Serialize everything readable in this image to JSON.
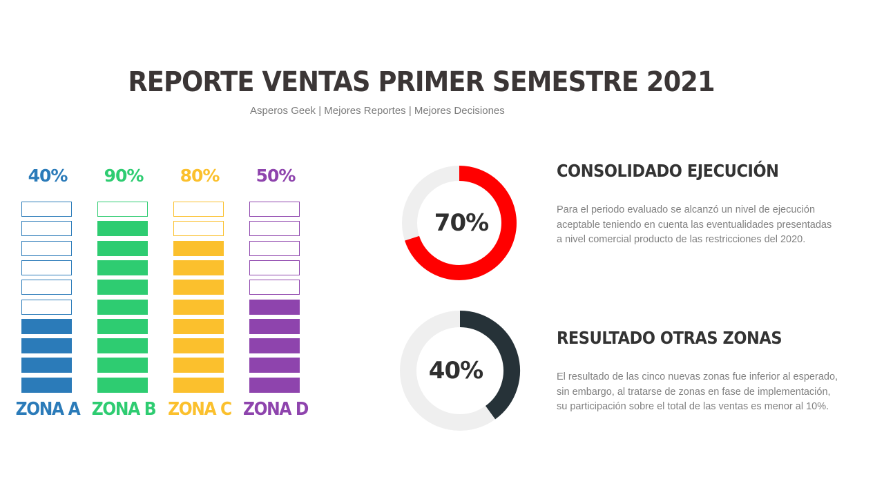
{
  "header": {
    "title": "REPORTE VENTAS PRIMER SEMESTRE 2021",
    "subtitle": "Asperos Geek | Mejores Reportes | Mejores Decisiones"
  },
  "chart_data": [
    {
      "type": "bar",
      "categories": [
        "ZONA A",
        "ZONA B",
        "ZONA C",
        "ZONA D"
      ],
      "values": [
        40,
        90,
        80,
        50
      ],
      "value_labels": [
        "40%",
        "90%",
        "80%",
        "50%"
      ],
      "segments": 10,
      "colors": [
        "#2b7bb9",
        "#2ecc71",
        "#fbc02d",
        "#8e44ad"
      ]
    },
    {
      "type": "pie",
      "label": "70%",
      "value": 70,
      "color": "#ff0000",
      "track_color": "#efefef"
    },
    {
      "type": "pie",
      "label": "40%",
      "value": 40,
      "color": "#263238",
      "track_color": "#efefef"
    }
  ],
  "sections": [
    {
      "heading": "CONSOLIDADO EJECUCIÓN",
      "lines": [
        "Para el periodo evaluado se alcanzó un nivel de ejecución",
        "aceptable teniendo en cuenta las eventualidades presentadas",
        "a nivel comercial producto de las restricciones del 2020."
      ]
    },
    {
      "heading": "RESULTADO OTRAS ZONAS",
      "lines": [
        "El resultado de las cinco nuevas zonas fue inferior al esperado,",
        "sin embargo, al tratarse de zonas en fase de implementación,",
        "su participación sobre el total de las ventas es menor al 10%."
      ]
    }
  ]
}
